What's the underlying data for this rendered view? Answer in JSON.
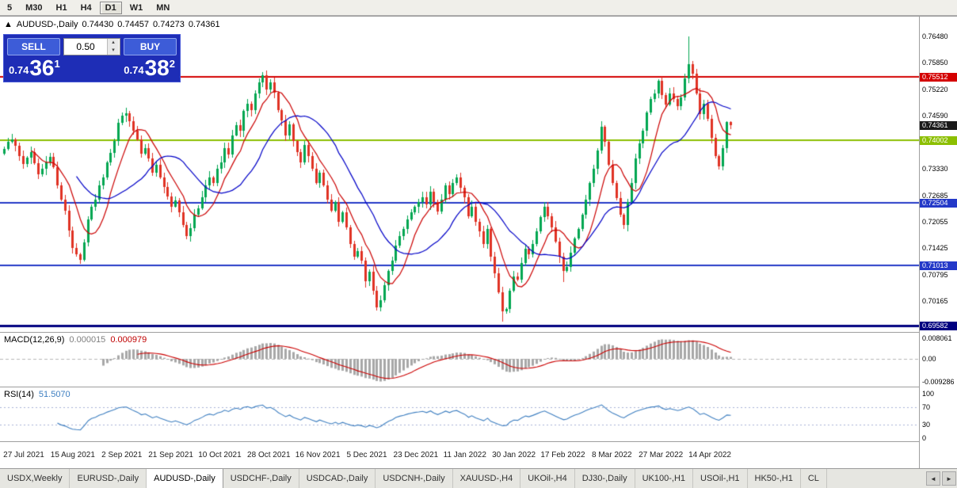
{
  "toolbar": {
    "timeframes": [
      {
        "label": "5",
        "active": false
      },
      {
        "label": "M30",
        "active": false
      },
      {
        "label": "H1",
        "active": false
      },
      {
        "label": "H4",
        "active": false
      },
      {
        "label": "D1",
        "active": true
      },
      {
        "label": "W1",
        "active": false
      },
      {
        "label": "MN",
        "active": false
      }
    ]
  },
  "chart_header": {
    "collapse_icon": "▲",
    "symbol": "AUDUSD-,Daily",
    "open": "0.74430",
    "high": "0.74457",
    "low": "0.74273",
    "close": "0.74361"
  },
  "trade_panel": {
    "sell_label": "SELL",
    "buy_label": "BUY",
    "lot_value": "0.50",
    "sell_price_small": "0.74",
    "sell_price_big": "36",
    "sell_price_sup": "1",
    "buy_price_small": "0.74",
    "buy_price_big": "38",
    "buy_price_sup": "2",
    "icons": {
      "lot_increase": "▴",
      "lot_decrease": "▾"
    }
  },
  "price_scale": {
    "labels": [
      {
        "label": "0.76480",
        "value": 0.7648,
        "type": "plain"
      },
      {
        "label": "0.75850",
        "value": 0.7585,
        "type": "plain"
      },
      {
        "label": "0.75512",
        "value": 0.75512,
        "type": "tag",
        "bg": "#D40000"
      },
      {
        "label": "0.75220",
        "value": 0.7522,
        "type": "plain"
      },
      {
        "label": "0.74590",
        "value": 0.7459,
        "type": "plain"
      },
      {
        "label": "0.74361",
        "value": 0.74361,
        "type": "tag",
        "bg": "#1A1A1A"
      },
      {
        "label": "0.74002",
        "value": 0.74002,
        "type": "tag",
        "bg": "#8CBF00"
      },
      {
        "label": "0.73330",
        "value": 0.7333,
        "type": "plain"
      },
      {
        "label": "0.72685",
        "value": 0.72685,
        "type": "plain"
      },
      {
        "label": "0.72504",
        "value": 0.72504,
        "type": "tag",
        "bg": "#2439C8"
      },
      {
        "label": "0.72055",
        "value": 0.72055,
        "type": "plain"
      },
      {
        "label": "0.71425",
        "value": 0.71425,
        "type": "plain"
      },
      {
        "label": "0.71013",
        "value": 0.71013,
        "type": "tag",
        "bg": "#2439C8"
      },
      {
        "label": "0.70795",
        "value": 0.70795,
        "type": "plain"
      },
      {
        "label": "0.70165",
        "value": 0.70165,
        "type": "plain"
      },
      {
        "label": "0.69582",
        "value": 0.69582,
        "type": "tag",
        "bg": "#000080"
      }
    ]
  },
  "indicator_macd": {
    "title": "MACD(12,26,9)",
    "value_main": "0.000015",
    "value_signal": "0.000979",
    "axis": [
      {
        "label": "0.008061",
        "value": 0.008061
      },
      {
        "label": "0.00",
        "value": 0
      },
      {
        "label": "-0.009286",
        "value": -0.009286
      }
    ]
  },
  "indicator_rsi": {
    "title": "RSI(14)",
    "value": "51.5070",
    "axis": [
      {
        "label": "100",
        "value": 100
      },
      {
        "label": "70",
        "value": 70
      },
      {
        "label": "30",
        "value": 30
      },
      {
        "label": "0",
        "value": 0
      }
    ]
  },
  "tabs": {
    "items": [
      {
        "label": "USDX,Weekly",
        "active": false
      },
      {
        "label": "EURUSD-,Daily",
        "active": false
      },
      {
        "label": "AUDUSD-,Daily",
        "active": true
      },
      {
        "label": "USDCHF-,Daily",
        "active": false
      },
      {
        "label": "USDCAD-,Daily",
        "active": false
      },
      {
        "label": "USDCNH-,Daily",
        "active": false
      },
      {
        "label": "XAUUSD-,H4",
        "active": false
      },
      {
        "label": "UKOil-,H4",
        "active": false
      },
      {
        "label": "DJ30-,Daily",
        "active": false
      },
      {
        "label": "UK100-,H1",
        "active": false
      },
      {
        "label": "USOil-,H1",
        "active": false
      },
      {
        "label": "HK50-,H1",
        "active": false
      },
      {
        "label": "CL",
        "active": false
      }
    ],
    "scroll_left": "◄",
    "scroll_right": "►"
  },
  "chart_data": {
    "type": "candlestick",
    "symbol": "AUDUSD-",
    "period": "Daily",
    "y_axis_range": [
      0.69428,
      0.7695
    ],
    "x_axis_labels": [
      "27 Jul 2021",
      "15 Aug 2021",
      "2 Sep 2021",
      "21 Sep 2021",
      "10 Oct 2021",
      "28 Oct 2021",
      "16 Nov 2021",
      "5 Dec 2021",
      "23 Dec 2021",
      "11 Jan 2022",
      "30 Jan 2022",
      "17 Feb 2022",
      "8 Mar 2022",
      "27 Mar 2022",
      "14 Apr 2022"
    ],
    "first_open": 0.7368,
    "closes": [
      0.738,
      0.7396,
      0.7402,
      0.7386,
      0.7362,
      0.7344,
      0.7358,
      0.7371,
      0.7346,
      0.7318,
      0.7332,
      0.7348,
      0.736,
      0.7336,
      0.7292,
      0.7258,
      0.7232,
      0.7184,
      0.7144,
      0.7128,
      0.7115,
      0.7156,
      0.7212,
      0.7242,
      0.7258,
      0.7292,
      0.7312,
      0.7348,
      0.737,
      0.7398,
      0.7442,
      0.7458,
      0.7464,
      0.7446,
      0.7422,
      0.7402,
      0.7368,
      0.7382,
      0.7356,
      0.7322,
      0.7342,
      0.7312,
      0.7288,
      0.7266,
      0.7242,
      0.7256,
      0.7228,
      0.7198,
      0.7172,
      0.719,
      0.7222,
      0.7238,
      0.7264,
      0.7292,
      0.7312,
      0.7298,
      0.7332,
      0.7348,
      0.7382,
      0.7366,
      0.7412,
      0.7436,
      0.7422,
      0.747,
      0.7488,
      0.7472,
      0.7512,
      0.7538,
      0.7556,
      0.7522,
      0.7538,
      0.7514,
      0.7472,
      0.7448,
      0.7412,
      0.7438,
      0.7398,
      0.7372,
      0.7348,
      0.7388,
      0.7362,
      0.7332,
      0.7298,
      0.7322,
      0.7292,
      0.7258,
      0.7232,
      0.7252,
      0.7206,
      0.7228,
      0.7192,
      0.7152,
      0.7122,
      0.7136,
      0.7112,
      0.7064,
      0.7086,
      0.7042,
      0.7002,
      0.7018,
      0.7054,
      0.7088,
      0.7112,
      0.7148,
      0.7172,
      0.7188,
      0.7212,
      0.7228,
      0.7242,
      0.7252,
      0.7264,
      0.7248,
      0.7278,
      0.7252,
      0.723,
      0.7258,
      0.7292,
      0.7272,
      0.7298,
      0.7312,
      0.7286,
      0.7264,
      0.7218,
      0.7242,
      0.7206,
      0.7182,
      0.7152,
      0.7188,
      0.7122,
      0.7082,
      0.7038,
      0.6992,
      0.6998,
      0.7042,
      0.7076,
      0.7068,
      0.7108,
      0.7142,
      0.7128,
      0.7152,
      0.7182,
      0.7216,
      0.7242,
      0.7218,
      0.7192,
      0.7158,
      0.7122,
      0.7088,
      0.7098,
      0.7132,
      0.7166,
      0.7188,
      0.7222,
      0.7258,
      0.7298,
      0.7332,
      0.7376,
      0.7432,
      0.7396,
      0.7342,
      0.7298,
      0.7262,
      0.7222,
      0.7198,
      0.7252,
      0.7298,
      0.7356,
      0.7392,
      0.7422,
      0.7466,
      0.7498,
      0.7512,
      0.7542,
      0.7508,
      0.7486,
      0.7512,
      0.7498,
      0.7482,
      0.7502,
      0.7548,
      0.7582,
      0.7558,
      0.7512,
      0.7462,
      0.7488,
      0.7452,
      0.7406,
      0.7362,
      0.7338,
      0.7381,
      0.7443,
      0.74361
    ],
    "wick_overrides": {
      "20": {
        "low": 0.7106
      },
      "32": {
        "high": 0.7478
      },
      "98": {
        "low": 0.6993
      },
      "131": {
        "low": 0.6968
      },
      "147": {
        "low": 0.7062
      },
      "180": {
        "high": 0.7648
      },
      "191": {
        "high": 0.74457,
        "low": 0.74273
      }
    },
    "levels": [
      {
        "value": 0.75512,
        "color": "#D40000",
        "width": 2
      },
      {
        "value": 0.74002,
        "color": "#8CBF00",
        "width": 2
      },
      {
        "value": 0.72504,
        "color": "#2439C8",
        "width": 2
      },
      {
        "value": 0.71013,
        "color": "#2439C8",
        "width": 2
      },
      {
        "value": 0.69582,
        "color": "#000080",
        "width": 3
      }
    ],
    "moving_averages": [
      {
        "period": 8,
        "color": "#CC0000"
      },
      {
        "period": 20,
        "color": "#0000C8"
      }
    ],
    "macd": {
      "fast": 12,
      "slow": 26,
      "signal": 9,
      "histogram_color": "#A8A8A8",
      "signal_color": "#CC0000"
    },
    "rsi": {
      "period": 14,
      "color": "#3E7FC1",
      "levels": [
        70,
        30
      ],
      "level_color": "#A8B4D8"
    },
    "candle_up_color": "#00A651",
    "candle_down_color": "#E03224"
  }
}
